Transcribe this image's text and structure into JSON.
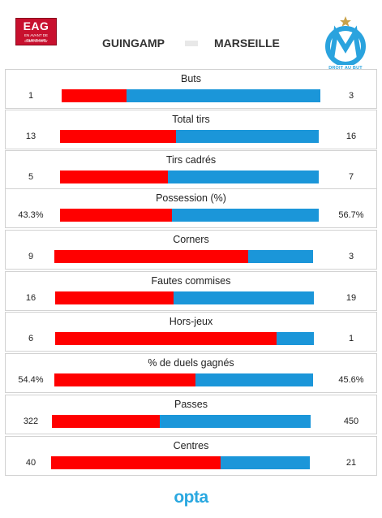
{
  "header": {
    "home_team": "GUINGAMP",
    "away_team": "MARSEILLE",
    "home_logo": {
      "abbr": "EAG",
      "line1": "EN AVANT DE GUINGAMP",
      "line2": "Côtes d'Armor"
    },
    "away_logo": {
      "motto": "DROIT AU BUT"
    }
  },
  "colors": {
    "home": "#ff0000",
    "away": "#1b96d9"
  },
  "chart_data": {
    "type": "bar",
    "orientation": "horizontal-stacked",
    "series": [
      {
        "name": "GUINGAMP",
        "values": [
          1,
          13,
          5,
          43.3,
          9,
          16,
          6,
          54.4,
          322,
          40
        ]
      },
      {
        "name": "MARSEILLE",
        "values": [
          3,
          16,
          7,
          56.7,
          3,
          19,
          1,
          45.6,
          450,
          21
        ]
      }
    ],
    "categories": [
      "Buts",
      "Total tirs",
      "Tirs cadrés",
      "Possession (%)",
      "Corners",
      "Fautes commises",
      "Hors-jeux",
      "% de duels gagnés",
      "Passes",
      "Centres"
    ],
    "stats": [
      {
        "label": "Buts",
        "home": "1",
        "away": "3",
        "home_value": 1,
        "away_value": 3
      },
      {
        "label": "Total tirs",
        "home": "13",
        "away": "16",
        "home_value": 13,
        "away_value": 16
      },
      {
        "label": "Tirs cadrés",
        "home": "5",
        "away": "7",
        "home_value": 5,
        "away_value": 7
      },
      {
        "label": "Possession (%)",
        "home": "43.3%",
        "away": "56.7%",
        "home_value": 43.3,
        "away_value": 56.7
      },
      {
        "label": "Corners",
        "home": "9",
        "away": "3",
        "home_value": 9,
        "away_value": 3
      },
      {
        "label": "Fautes commises",
        "home": "16",
        "away": "19",
        "home_value": 16,
        "away_value": 19
      },
      {
        "label": "Hors-jeux",
        "home": "6",
        "away": "1",
        "home_value": 6,
        "away_value": 1
      },
      {
        "label": "% de duels gagnés",
        "home": "54.4%",
        "away": "45.6%",
        "home_value": 54.4,
        "away_value": 45.6
      },
      {
        "label": "Passes",
        "home": "322",
        "away": "450",
        "home_value": 322,
        "away_value": 450
      },
      {
        "label": "Centres",
        "home": "40",
        "away": "21",
        "home_value": 40,
        "away_value": 21
      }
    ]
  },
  "footer": {
    "brand": "opta"
  }
}
